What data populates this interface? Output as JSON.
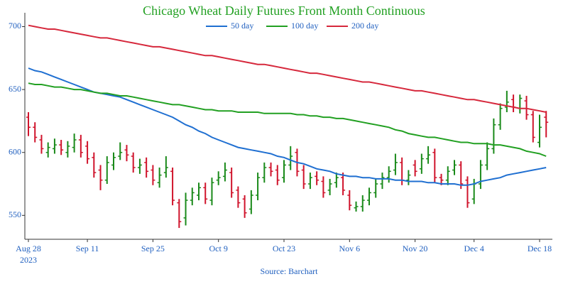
{
  "chart_data": {
    "type": "ohlc",
    "title": "Chicago Wheat Daily Futures Front Month Continuous",
    "source": "Source: Barchart",
    "categories": [
      "2023-08-28",
      "2023-08-29",
      "2023-08-30",
      "2023-08-31",
      "2023-09-01",
      "2023-09-05",
      "2023-09-06",
      "2023-09-07",
      "2023-09-08",
      "2023-09-11",
      "2023-09-12",
      "2023-09-13",
      "2023-09-14",
      "2023-09-15",
      "2023-09-18",
      "2023-09-19",
      "2023-09-20",
      "2023-09-21",
      "2023-09-22",
      "2023-09-25",
      "2023-09-26",
      "2023-09-27",
      "2023-09-28",
      "2023-09-29",
      "2023-10-02",
      "2023-10-03",
      "2023-10-04",
      "2023-10-05",
      "2023-10-06",
      "2023-10-09",
      "2023-10-10",
      "2023-10-11",
      "2023-10-12",
      "2023-10-13",
      "2023-10-16",
      "2023-10-17",
      "2023-10-18",
      "2023-10-19",
      "2023-10-20",
      "2023-10-23",
      "2023-10-24",
      "2023-10-25",
      "2023-10-26",
      "2023-10-27",
      "2023-10-30",
      "2023-10-31",
      "2023-11-01",
      "2023-11-02",
      "2023-11-03",
      "2023-11-06",
      "2023-11-07",
      "2023-11-08",
      "2023-11-09",
      "2023-11-10",
      "2023-11-13",
      "2023-11-14",
      "2023-11-15",
      "2023-11-16",
      "2023-11-17",
      "2023-11-20",
      "2023-11-21",
      "2023-11-22",
      "2023-11-24",
      "2023-11-27",
      "2023-11-28",
      "2023-11-29",
      "2023-11-30",
      "2023-12-01",
      "2023-12-04",
      "2023-12-05",
      "2023-12-06",
      "2023-12-07",
      "2023-12-08",
      "2023-12-11",
      "2023-12-12",
      "2023-12-13",
      "2023-12-14",
      "2023-12-15",
      "2023-12-18",
      "2023-12-19"
    ],
    "open": [
      628,
      620,
      610,
      600,
      603,
      606,
      600,
      604,
      610,
      605,
      596,
      586,
      578,
      590,
      597,
      602,
      597,
      588,
      592,
      586,
      576,
      584,
      585,
      560,
      548,
      562,
      566,
      572,
      562,
      578,
      581,
      584,
      570,
      563,
      555,
      566,
      580,
      588,
      586,
      580,
      590,
      600,
      586,
      575,
      581,
      577,
      570,
      576,
      580,
      566,
      556,
      557,
      562,
      568,
      575,
      580,
      586,
      592,
      578,
      590,
      587,
      595,
      600,
      580,
      578,
      586,
      590,
      578,
      563,
      575,
      590,
      603,
      622,
      636,
      642,
      635,
      641,
      630,
      608,
      628
    ],
    "high": [
      632,
      624,
      614,
      608,
      611,
      610,
      609,
      615,
      614,
      609,
      600,
      590,
      597,
      600,
      608,
      606,
      600,
      595,
      596,
      590,
      588,
      597,
      588,
      563,
      568,
      572,
      576,
      576,
      580,
      585,
      592,
      588,
      573,
      566,
      570,
      584,
      592,
      592,
      590,
      594,
      605,
      603,
      590,
      584,
      585,
      581,
      579,
      584,
      584,
      570,
      561,
      566,
      572,
      579,
      584,
      589,
      599,
      596,
      586,
      594,
      599,
      605,
      603,
      583,
      589,
      594,
      593,
      581,
      579,
      594,
      608,
      627,
      639,
      649,
      646,
      646,
      645,
      633,
      630,
      633
    ],
    "low": [
      613,
      608,
      599,
      596,
      599,
      598,
      596,
      600,
      596,
      591,
      580,
      570,
      575,
      586,
      594,
      593,
      584,
      583,
      580,
      574,
      572,
      580,
      558,
      540,
      542,
      558,
      562,
      559,
      558,
      574,
      577,
      564,
      556,
      548,
      551,
      562,
      576,
      581,
      574,
      576,
      586,
      581,
      571,
      571,
      574,
      564,
      566,
      572,
      566,
      554,
      553,
      553,
      558,
      564,
      571,
      576,
      582,
      574,
      574,
      581,
      583,
      591,
      576,
      574,
      574,
      582,
      571,
      556,
      559,
      571,
      586,
      599,
      618,
      632,
      632,
      631,
      626,
      608,
      604,
      612
    ],
    "close": [
      620,
      612,
      603,
      604,
      606,
      602,
      605,
      610,
      600,
      595,
      584,
      578,
      592,
      596,
      600,
      598,
      588,
      590,
      585,
      578,
      582,
      588,
      562,
      545,
      562,
      568,
      572,
      563,
      576,
      580,
      586,
      568,
      560,
      552,
      566,
      580,
      588,
      585,
      578,
      590,
      597,
      585,
      575,
      580,
      578,
      568,
      575,
      580,
      570,
      558,
      557,
      562,
      568,
      575,
      580,
      585,
      592,
      578,
      582,
      585,
      595,
      598,
      580,
      578,
      585,
      590,
      575,
      560,
      575,
      590,
      603,
      622,
      635,
      640,
      636,
      643,
      630,
      612,
      620,
      624
    ],
    "up_color": "#1a8a1a",
    "down_color": "#d0142c",
    "series": [
      {
        "name": "50 day",
        "color": "#1f6fd1",
        "values": [
          667,
          665,
          664,
          662,
          660,
          658,
          656,
          654,
          652,
          650,
          648,
          647,
          646,
          645,
          644,
          642,
          640,
          638,
          636,
          634,
          632,
          630,
          628,
          625,
          622,
          620,
          617,
          615,
          612,
          610,
          608,
          606,
          604,
          603,
          602,
          601,
          600,
          599,
          597,
          596,
          594,
          592,
          591,
          589,
          587,
          586,
          585,
          583,
          582,
          581,
          581,
          580,
          580,
          579,
          579,
          579,
          578,
          578,
          577,
          577,
          577,
          576,
          576,
          575,
          575,
          575,
          574,
          574,
          575,
          577,
          578,
          579,
          580,
          582,
          583,
          584,
          585,
          586,
          587,
          588
        ]
      },
      {
        "name": "100 day",
        "color": "#22a022",
        "values": [
          655,
          654,
          654,
          653,
          652,
          652,
          651,
          650,
          650,
          649,
          648,
          647,
          647,
          646,
          645,
          645,
          644,
          643,
          642,
          641,
          640,
          639,
          638,
          638,
          637,
          636,
          635,
          634,
          634,
          633,
          633,
          633,
          632,
          632,
          632,
          632,
          631,
          631,
          631,
          631,
          631,
          630,
          630,
          629,
          629,
          628,
          628,
          627,
          627,
          626,
          625,
          624,
          623,
          622,
          621,
          620,
          618,
          617,
          615,
          614,
          613,
          612,
          612,
          611,
          610,
          609,
          608,
          608,
          607,
          607,
          607,
          606,
          606,
          605,
          604,
          603,
          601,
          600,
          599,
          597
        ]
      },
      {
        "name": "200 day",
        "color": "#d6283c",
        "values": [
          701,
          700,
          699,
          698,
          698,
          697,
          696,
          695,
          694,
          693,
          692,
          691,
          691,
          690,
          689,
          688,
          687,
          686,
          685,
          684,
          684,
          683,
          682,
          681,
          680,
          679,
          678,
          677,
          677,
          676,
          675,
          674,
          673,
          672,
          671,
          670,
          670,
          669,
          668,
          667,
          666,
          665,
          664,
          663,
          663,
          662,
          661,
          660,
          659,
          658,
          657,
          656,
          656,
          655,
          654,
          653,
          652,
          651,
          650,
          649,
          649,
          648,
          647,
          646,
          645,
          644,
          643,
          642,
          642,
          641,
          640,
          639,
          638,
          637,
          636,
          635,
          635,
          634,
          633,
          632
        ]
      }
    ],
    "ylim": [
      531,
      711
    ],
    "yticks": [
      550,
      600,
      650,
      700
    ],
    "xticks": [
      {
        "value": "2023-08-28",
        "label": "Aug 28"
      },
      {
        "value": "2023-09-11",
        "label": "Sep 11"
      },
      {
        "value": "2023-09-25",
        "label": "Sep 25"
      },
      {
        "value": "2023-10-09",
        "label": "Oct 9"
      },
      {
        "value": "2023-10-23",
        "label": "Oct 23"
      },
      {
        "value": "2023-11-06",
        "label": "Nov 6"
      },
      {
        "value": "2023-11-20",
        "label": "Nov 20"
      },
      {
        "value": "2023-12-04",
        "label": "Dec 4"
      },
      {
        "value": "2023-12-18",
        "label": "Dec 18"
      }
    ],
    "xtick_year": "2023",
    "grid": false
  }
}
